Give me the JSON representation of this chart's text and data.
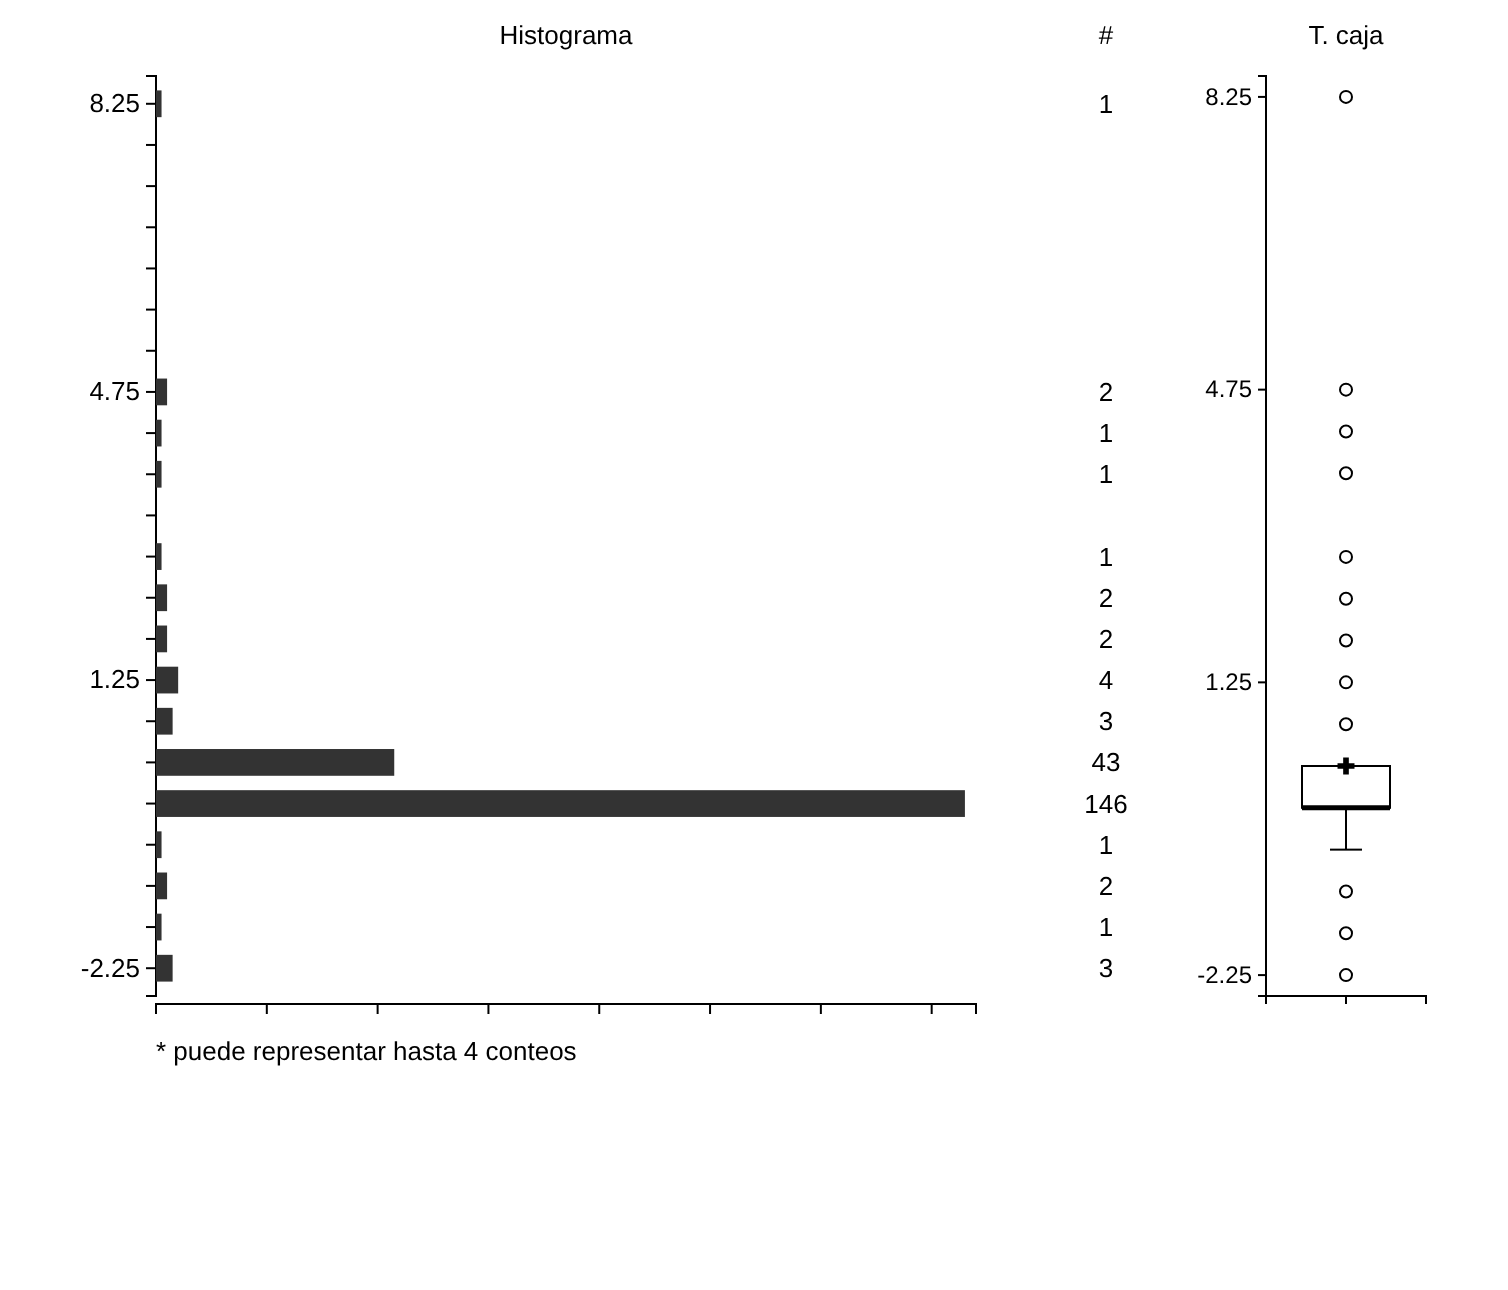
{
  "chart_data": [
    {
      "type": "bar",
      "orientation": "horizontal",
      "title": "Histograma",
      "categories": [
        "8.25",
        null,
        null,
        null,
        null,
        null,
        null,
        "4.75",
        null,
        null,
        null,
        null,
        null,
        null,
        "1.25",
        null,
        null,
        null,
        null,
        null,
        null,
        "-2.25"
      ],
      "series": [
        {
          "color": "#333333",
          "values": [
            1,
            0,
            0,
            0,
            0,
            0,
            0,
            2,
            1,
            1,
            0,
            1,
            2,
            2,
            4,
            3,
            43,
            146,
            1,
            2,
            1,
            3
          ],
          "value_labels": [
            "1",
            null,
            null,
            null,
            null,
            null,
            null,
            "2",
            "1",
            "1",
            null,
            "1",
            "2",
            "2",
            "4",
            "3",
            "43",
            "146",
            "1",
            "2",
            "1",
            "3"
          ]
        }
      ],
      "xlim": [
        0,
        148
      ],
      "xticks": [
        {
          "value": 20,
          "label": null
        },
        {
          "value": 40,
          "label": null
        },
        {
          "value": 60,
          "label": null
        },
        {
          "value": 80,
          "label": null
        },
        {
          "value": 100,
          "label": null
        },
        {
          "value": 120,
          "label": null
        },
        {
          "value": 140,
          "label": null
        }
      ],
      "tick_labels": "y",
      "annotations": [
        "#",
        "* puede representar hasta 4 conteos"
      ]
    },
    {
      "type": "box",
      "title": "T. caja",
      "categories": [
        null
      ],
      "ylim": [
        -2.5,
        8.5
      ],
      "yticks": [
        8.25,
        4.75,
        1.25,
        -2.25
      ],
      "boxes": [
        {
          "low": -0.75,
          "q1": -0.25,
          "median": -0.25,
          "q3": 0.25,
          "high": 0.25,
          "mean": 0.25,
          "outliers": [
            8.25,
            4.75,
            4.25,
            3.75,
            2.75,
            2.25,
            1.75,
            1.25,
            0.75,
            -1.25,
            -1.75,
            -2.25
          ]
        }
      ]
    }
  ]
}
